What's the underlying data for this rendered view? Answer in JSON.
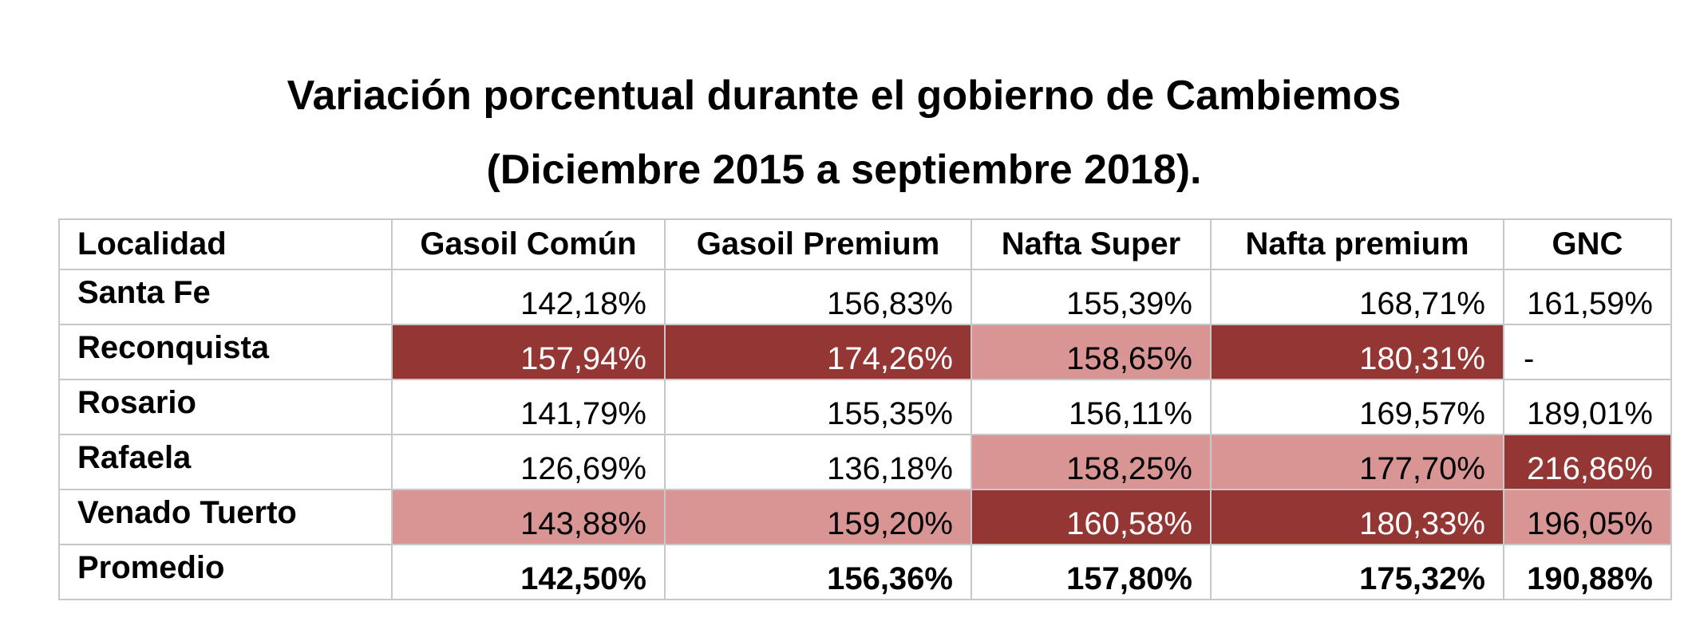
{
  "title": {
    "line1": "Variación porcentual durante el gobierno de Cambiemos",
    "line2": "(Diciembre 2015 a septiembre 2018)."
  },
  "colors": {
    "dark_highlight": "#943634",
    "light_highlight": "#d99594",
    "grid": "#c8c8c8"
  },
  "table": {
    "headers": [
      "Localidad",
      "Gasoil Común",
      "Gasoil Premium",
      "Nafta Super",
      "Nafta premium",
      "GNC"
    ],
    "rows": [
      {
        "localidad": "Santa Fe",
        "values": [
          "142,18%",
          "156,83%",
          "155,39%",
          "168,71%",
          "161,59%"
        ],
        "highlight": [
          "none",
          "none",
          "none",
          "none",
          "none"
        ]
      },
      {
        "localidad": "Reconquista",
        "values": [
          "157,94%",
          "174,26%",
          "158,65%",
          "180,31%",
          "-"
        ],
        "highlight": [
          "dark",
          "dark",
          "light",
          "dark",
          "none"
        ]
      },
      {
        "localidad": "Rosario",
        "values": [
          "141,79%",
          "155,35%",
          "156,11%",
          "169,57%",
          "189,01%"
        ],
        "highlight": [
          "none",
          "none",
          "none",
          "none",
          "none"
        ]
      },
      {
        "localidad": "Rafaela",
        "values": [
          "126,69%",
          "136,18%",
          "158,25%",
          "177,70%",
          "216,86%"
        ],
        "highlight": [
          "none",
          "none",
          "light",
          "light",
          "dark"
        ]
      },
      {
        "localidad": "Venado Tuerto",
        "values": [
          "143,88%",
          "159,20%",
          "160,58%",
          "180,33%",
          "196,05%"
        ],
        "highlight": [
          "light",
          "light",
          "dark",
          "dark",
          "light"
        ]
      },
      {
        "localidad": "Promedio",
        "values": [
          "142,50%",
          "156,36%",
          "157,80%",
          "175,32%",
          "190,88%"
        ],
        "highlight": [
          "none",
          "none",
          "none",
          "none",
          "none"
        ]
      }
    ]
  }
}
